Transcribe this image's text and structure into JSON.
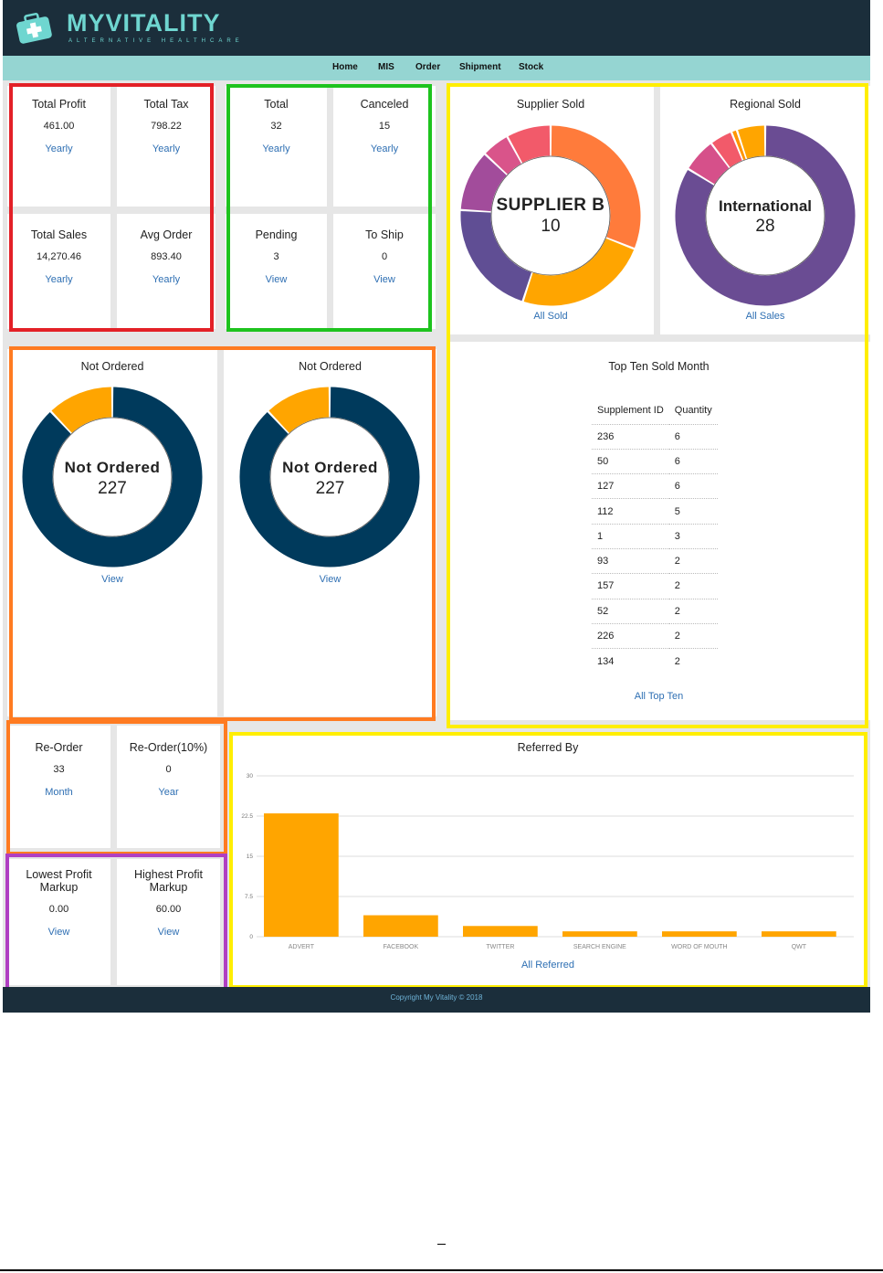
{
  "brand": {
    "name": "MYVITALITY",
    "tagline": "ALTERNATIVE HEALTHCARE"
  },
  "nav": [
    "Home",
    "MIS",
    "Order",
    "Shipment",
    "Stock"
  ],
  "stats_financial": [
    {
      "title": "Total Profit",
      "value": "461.00",
      "link": "Yearly"
    },
    {
      "title": "Total Tax",
      "value": "798.22",
      "link": "Yearly"
    },
    {
      "title": "Total Sales",
      "value": "14,270.46",
      "link": "Yearly"
    },
    {
      "title": "Avg Order",
      "value": "893.40",
      "link": "Yearly"
    }
  ],
  "stats_orders": [
    {
      "title": "Total",
      "value": "32",
      "link": "Yearly"
    },
    {
      "title": "Canceled",
      "value": "15",
      "link": "Yearly"
    },
    {
      "title": "Pending",
      "value": "3",
      "link": "View"
    },
    {
      "title": "To Ship",
      "value": "0",
      "link": "View"
    }
  ],
  "supplier_sold": {
    "title": "Supplier Sold",
    "center_label": "SUPPLIER B",
    "center_value": "10",
    "link": "All Sold"
  },
  "regional_sold": {
    "title": "Regional Sold",
    "center_label": "International",
    "center_value": "28",
    "link": "All Sales"
  },
  "not_ordered": [
    {
      "title": "Not Ordered",
      "center_label": "Not Ordered",
      "center_value": "227",
      "link": "View"
    },
    {
      "title": "Not Ordered",
      "center_label": "Not Ordered",
      "center_value": "227",
      "link": "View"
    }
  ],
  "top_ten": {
    "title": "Top Ten Sold Month",
    "headers": [
      "Supplement ID",
      "Quantity"
    ],
    "rows": [
      [
        "236",
        "6"
      ],
      [
        "50",
        "6"
      ],
      [
        "127",
        "6"
      ],
      [
        "112",
        "5"
      ],
      [
        "1",
        "3"
      ],
      [
        "93",
        "2"
      ],
      [
        "157",
        "2"
      ],
      [
        "52",
        "2"
      ],
      [
        "226",
        "2"
      ],
      [
        "134",
        "2"
      ]
    ],
    "link": "All Top Ten"
  },
  "reorder": [
    {
      "title": "Re-Order",
      "value": "33",
      "link": "Month"
    },
    {
      "title": "Re-Order(10%)",
      "value": "0",
      "link": "Year"
    }
  ],
  "markup": [
    {
      "title_line1": "Lowest Profit",
      "title_line2": "Markup",
      "value": "0.00",
      "link": "View"
    },
    {
      "title_line1": "Highest Profit",
      "title_line2": "Markup",
      "value": "60.00",
      "link": "View"
    }
  ],
  "footer": {
    "copyright": "Copyright My Vitality © 2018"
  },
  "colors": {
    "header": "#1b2e3b",
    "nav": "#95d5d2",
    "brand": "#6fd6d0",
    "link": "#2e6fb3",
    "bar": "#ffa500",
    "navy_ring": "#003a5c",
    "purple": "#6a4c93",
    "red": "#e32027",
    "green": "#1ec31e",
    "yellow": "#ffee00",
    "orange_hl": "#ff7b21",
    "violet_hl": "#b03fc2"
  },
  "chart_data": [
    {
      "type": "bar",
      "title": "Referred By",
      "categories": [
        "ADVERT",
        "FACEBOOK",
        "TWITTER",
        "SEARCH ENGINE",
        "WORD OF MOUTH",
        "QWT"
      ],
      "values": [
        23,
        4,
        2,
        1,
        1,
        1
      ],
      "ylim": [
        0,
        30
      ],
      "yticks": [
        "0",
        "7.5",
        "15",
        "22.5",
        "30"
      ],
      "xlabel": "",
      "ylabel": "",
      "link": "All Referred"
    },
    {
      "type": "pie",
      "title": "Supplier Sold",
      "slices": [
        {
          "value": 31,
          "color": "#ff7b3b"
        },
        {
          "value": 24,
          "color": "#ffa500"
        },
        {
          "value": 21,
          "color": "#604e94"
        },
        {
          "value": 11,
          "color": "#a24c9b"
        },
        {
          "value": 5,
          "color": "#d9548a"
        },
        {
          "value": 8,
          "color": "#f25a6a"
        }
      ]
    },
    {
      "type": "pie",
      "title": "Regional Sold",
      "slices": [
        {
          "value": 82,
          "color": "#6a4c93"
        },
        {
          "value": 6,
          "color": "#d6508a"
        },
        {
          "value": 4,
          "color": "#f25a6a"
        },
        {
          "value": 1,
          "color": "#ff9500"
        },
        {
          "value": 5,
          "color": "#ffa500"
        }
      ]
    },
    {
      "type": "pie",
      "title": "Not Ordered",
      "slices": [
        {
          "value": 88,
          "color": "#003a5c"
        },
        {
          "value": 12,
          "color": "#ffa500"
        }
      ]
    }
  ]
}
